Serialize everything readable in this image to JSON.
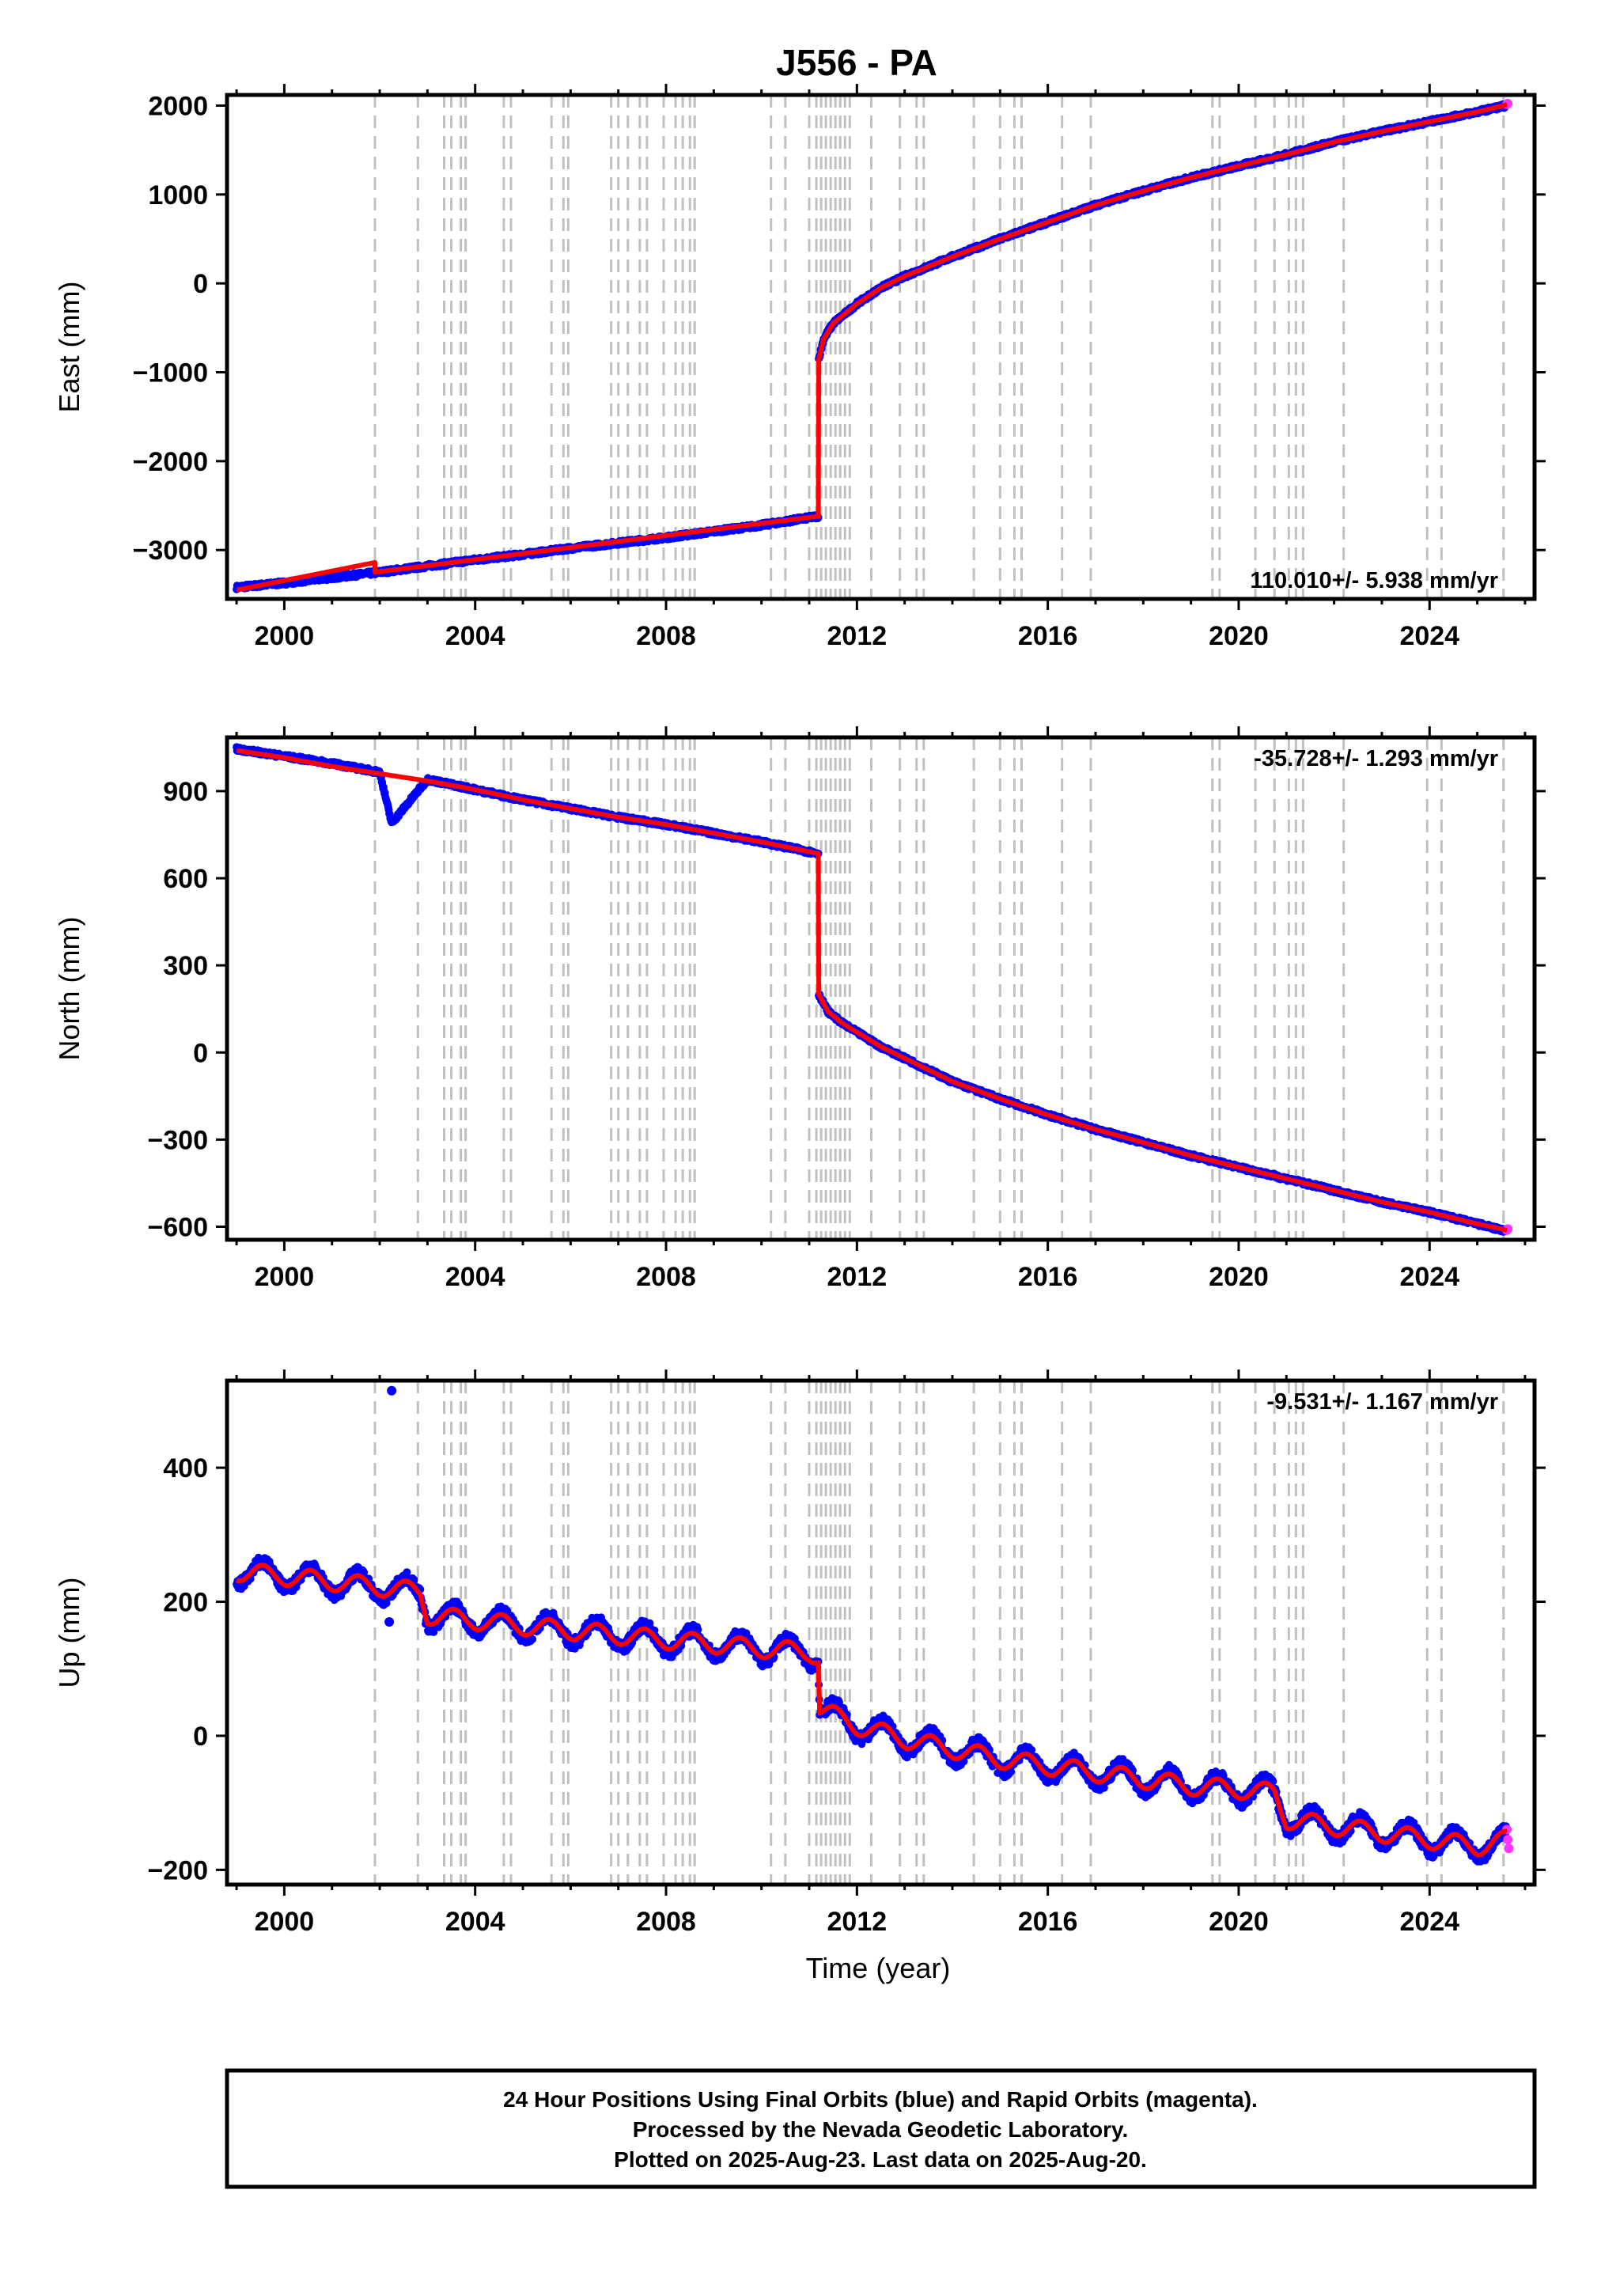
{
  "title": "J556 - PA",
  "xlabel": "Time (year)",
  "footer_lines": [
    "24 Hour Positions Using Final Orbits (blue) and Rapid Orbits (magenta).",
    "Processed by the Nevada Geodetic Laboratory.",
    "Plotted on 2025-Aug-23. Last data on 2025-Aug-20."
  ],
  "colors": {
    "final_orbits": "#0000ff",
    "rapid_orbits": "#ff33ff",
    "model_fit": "#ff0000",
    "event_lines": "#c0c0c0",
    "frame": "#000000"
  },
  "chart_data": [
    {
      "type": "scatter",
      "panel": "east",
      "ylabel": "East (mm)",
      "rate_text": "110.010+/- 5.938 mm/yr",
      "rate_position": "bottom-right",
      "xlim": [
        1998.8,
        2026.2
      ],
      "ylim": [
        -3550,
        2120
      ],
      "xticks": [
        2000,
        2004,
        2008,
        2012,
        2016,
        2020,
        2024
      ],
      "yticks": [
        -3000,
        -2000,
        -1000,
        0,
        1000,
        2000
      ],
      "grid": false,
      "event_lines_years": [
        2001.9,
        2002.8,
        2003.35,
        2003.5,
        2003.7,
        2003.8,
        2004.6,
        2004.75,
        2005.6,
        2005.85,
        2005.95,
        2006.85,
        2007.0,
        2007.2,
        2007.45,
        2007.6,
        2007.95,
        2008.2,
        2008.35,
        2008.5,
        2008.6,
        2010.2,
        2010.5,
        2011.0,
        2011.15,
        2011.25,
        2011.35,
        2011.45,
        2011.55,
        2011.65,
        2011.75,
        2011.85,
        2012.3,
        2012.9,
        2013.25,
        2013.4,
        2014.45,
        2015.0,
        2015.3,
        2015.45,
        2016.3,
        2016.9,
        2019.45,
        2019.6,
        2020.35,
        2020.75,
        2021.05,
        2021.2,
        2021.35,
        2022.2,
        2023.95,
        2024.25,
        2025.55
      ],
      "final_orbits": {
        "x": [
          1999.0,
          2000.0,
          2001.0,
          2002.0,
          2003.0,
          2004.0,
          2005.0,
          2006.0,
          2007.0,
          2008.0,
          2009.0,
          2010.0,
          2011.19,
          2011.2,
          2011.3,
          2011.5,
          2011.8,
          2012.0,
          2012.5,
          2013.0,
          2014.0,
          2015.0,
          2016.0,
          2017.0,
          2018.0,
          2019.0,
          2020.0,
          2021.0,
          2022.0,
          2023.0,
          2024.0,
          2025.0,
          2025.6
        ],
        "y": [
          -3420,
          -3370,
          -3310,
          -3250,
          -3180,
          -3110,
          -3050,
          -2980,
          -2920,
          -2860,
          -2790,
          -2720,
          -2620,
          -850,
          -630,
          -450,
          -320,
          -230,
          -50,
          80,
          300,
          500,
          690,
          880,
          1040,
          1190,
          1320,
          1450,
          1590,
          1710,
          1820,
          1930,
          2000
        ]
      },
      "rapid_orbits": {
        "x": [
          2025.62,
          2025.64
        ],
        "y": [
          2015,
          2022
        ]
      },
      "model_fit": {
        "x": [
          1999.0,
          2001.9,
          2001.9,
          2011.19,
          2011.2,
          2011.3,
          2011.5,
          2011.8,
          2012.0,
          2012.5,
          2013.0,
          2014.0,
          2015.0,
          2016.0,
          2017.0,
          2018.0,
          2019.0,
          2020.0,
          2021.0,
          2022.0,
          2023.0,
          2024.0,
          2025.0,
          2025.62
        ],
        "y": [
          -3450,
          -3140,
          -3250,
          -2620,
          -850,
          -630,
          -450,
          -320,
          -230,
          -50,
          80,
          300,
          500,
          690,
          880,
          1040,
          1190,
          1320,
          1450,
          1590,
          1710,
          1820,
          1930,
          2010
        ]
      }
    },
    {
      "type": "scatter",
      "panel": "north",
      "ylabel": "North (mm)",
      "rate_text": "-35.728+/- 1.293 mm/yr",
      "rate_position": "top-right",
      "xlim": [
        1998.8,
        2026.2
      ],
      "ylim": [
        -645,
        1085
      ],
      "xticks": [
        2000,
        2004,
        2008,
        2012,
        2016,
        2020,
        2024
      ],
      "yticks": [
        -600,
        -300,
        0,
        300,
        600,
        900
      ],
      "grid": false,
      "event_lines_years": [
        2001.9,
        2002.8,
        2003.35,
        2003.5,
        2003.7,
        2003.8,
        2004.6,
        2004.75,
        2005.6,
        2005.85,
        2005.95,
        2006.85,
        2007.0,
        2007.2,
        2007.45,
        2007.6,
        2007.95,
        2008.2,
        2008.35,
        2008.5,
        2008.6,
        2010.2,
        2010.5,
        2011.0,
        2011.15,
        2011.25,
        2011.35,
        2011.45,
        2011.55,
        2011.65,
        2011.75,
        2011.85,
        2012.3,
        2012.9,
        2013.25,
        2013.4,
        2014.45,
        2015.0,
        2015.3,
        2015.45,
        2016.3,
        2016.9,
        2019.45,
        2019.6,
        2020.35,
        2020.75,
        2021.05,
        2021.2,
        2021.35,
        2022.2,
        2023.95,
        2024.25,
        2025.55
      ],
      "final_orbits": {
        "x": [
          1999.0,
          2000.0,
          2001.0,
          2002.0,
          2002.25,
          2003.0,
          2004.0,
          2005.0,
          2006.0,
          2007.0,
          2008.0,
          2009.0,
          2010.0,
          2011.19,
          2011.2,
          2011.4,
          2011.7,
          2012.0,
          2012.5,
          2013.0,
          2014.0,
          2015.0,
          2016.0,
          2017.0,
          2018.0,
          2019.0,
          2020.0,
          2021.0,
          2022.0,
          2023.0,
          2024.0,
          2025.0,
          2025.6
        ],
        "y": [
          1045,
          1020,
          995,
          965,
          790,
          940,
          905,
          870,
          840,
          810,
          785,
          755,
          725,
          685,
          200,
          140,
          100,
          70,
          20,
          -20,
          -100,
          -160,
          -215,
          -265,
          -310,
          -355,
          -395,
          -435,
          -475,
          -515,
          -550,
          -590,
          -615
        ]
      },
      "rapid_orbits": {
        "x": [
          2025.62,
          2025.64
        ],
        "y": [
          -612,
          -608
        ]
      },
      "model_fit": {
        "x": [
          1999.0,
          2000.0,
          2001.0,
          2002.0,
          2003.0,
          2004.0,
          2005.0,
          2006.0,
          2007.0,
          2008.0,
          2009.0,
          2010.0,
          2011.19,
          2011.2,
          2011.4,
          2011.7,
          2012.0,
          2012.5,
          2013.0,
          2014.0,
          2015.0,
          2016.0,
          2017.0,
          2018.0,
          2019.0,
          2020.0,
          2021.0,
          2022.0,
          2023.0,
          2024.0,
          2025.0,
          2025.62
        ],
        "y": [
          1040,
          1015,
          985,
          960,
          935,
          905,
          870,
          840,
          810,
          785,
          755,
          725,
          685,
          200,
          140,
          100,
          70,
          20,
          -20,
          -100,
          -160,
          -215,
          -265,
          -310,
          -355,
          -395,
          -435,
          -475,
          -515,
          -550,
          -590,
          -612
        ]
      }
    },
    {
      "type": "scatter",
      "panel": "up",
      "ylabel": "Up (mm)",
      "rate_text": "-9.531+/- 1.167 mm/yr",
      "rate_position": "top-right",
      "xlim": [
        1998.8,
        2026.2
      ],
      "ylim": [
        -222,
        530
      ],
      "xticks": [
        2000,
        2004,
        2008,
        2012,
        2016,
        2020,
        2024
      ],
      "yticks": [
        -200,
        0,
        200,
        400
      ],
      "grid": false,
      "event_lines_years": [
        2001.9,
        2002.8,
        2003.35,
        2003.5,
        2003.7,
        2003.8,
        2004.6,
        2004.75,
        2005.6,
        2005.85,
        2005.95,
        2006.85,
        2007.0,
        2007.2,
        2007.45,
        2007.6,
        2007.95,
        2008.2,
        2008.35,
        2008.5,
        2008.6,
        2010.2,
        2010.5,
        2011.0,
        2011.15,
        2011.25,
        2011.35,
        2011.45,
        2011.55,
        2011.65,
        2011.75,
        2011.85,
        2012.3,
        2012.9,
        2013.25,
        2013.4,
        2014.45,
        2015.0,
        2015.3,
        2015.45,
        2016.3,
        2016.9,
        2019.45,
        2019.6,
        2020.35,
        2020.75,
        2021.05,
        2021.2,
        2021.35,
        2022.2,
        2023.95,
        2024.25,
        2025.55
      ],
      "outliers": {
        "x": [
          2002.25,
          2002.2
        ],
        "y": [
          515,
          170
        ]
      },
      "final_orbits": {
        "x": [
          1999.0,
          2000.0,
          2001.0,
          2002.0,
          2002.85,
          2003.0,
          2004.0,
          2005.0,
          2006.0,
          2007.0,
          2008.0,
          2009.0,
          2010.0,
          2011.0,
          2011.19,
          2011.22,
          2012.0,
          2013.0,
          2014.0,
          2015.0,
          2016.0,
          2017.0,
          2018.0,
          2019.0,
          2020.0,
          2020.75,
          2021.0,
          2022.0,
          2023.0,
          2024.0,
          2025.0,
          2025.6
        ],
        "y": [
          245,
          238,
          230,
          222,
          215,
          180,
          172,
          164,
          157,
          150,
          143,
          137,
          130,
          125,
          118,
          40,
          15,
          -5,
          -20,
          -35,
          -45,
          -55,
          -65,
          -75,
          -80,
          -85,
          -125,
          -135,
          -145,
          -155,
          -165,
          -160
        ]
      },
      "rapid_orbits": {
        "x": [
          2025.62,
          2025.64,
          2025.66
        ],
        "y": [
          -140,
          -155,
          -168
        ]
      },
      "model_fit": {
        "x": [
          1999.0,
          2000.0,
          2001.0,
          2002.0,
          2002.85,
          2003.0,
          2004.0,
          2005.0,
          2006.0,
          2007.0,
          2008.0,
          2009.0,
          2010.0,
          2011.0,
          2011.19,
          2011.22,
          2012.0,
          2013.0,
          2014.0,
          2015.0,
          2016.0,
          2017.0,
          2018.0,
          2019.0,
          2020.0,
          2020.75,
          2021.0,
          2022.0,
          2023.0,
          2024.0,
          2025.0,
          2025.62
        ],
        "y": [
          245,
          238,
          230,
          222,
          215,
          180,
          172,
          164,
          157,
          150,
          143,
          137,
          130,
          125,
          118,
          40,
          15,
          -5,
          -20,
          -35,
          -45,
          -55,
          -65,
          -75,
          -80,
          -85,
          -125,
          -135,
          -145,
          -155,
          -165,
          -155
        ]
      },
      "seasonal_amplitude_mm": 18
    }
  ]
}
